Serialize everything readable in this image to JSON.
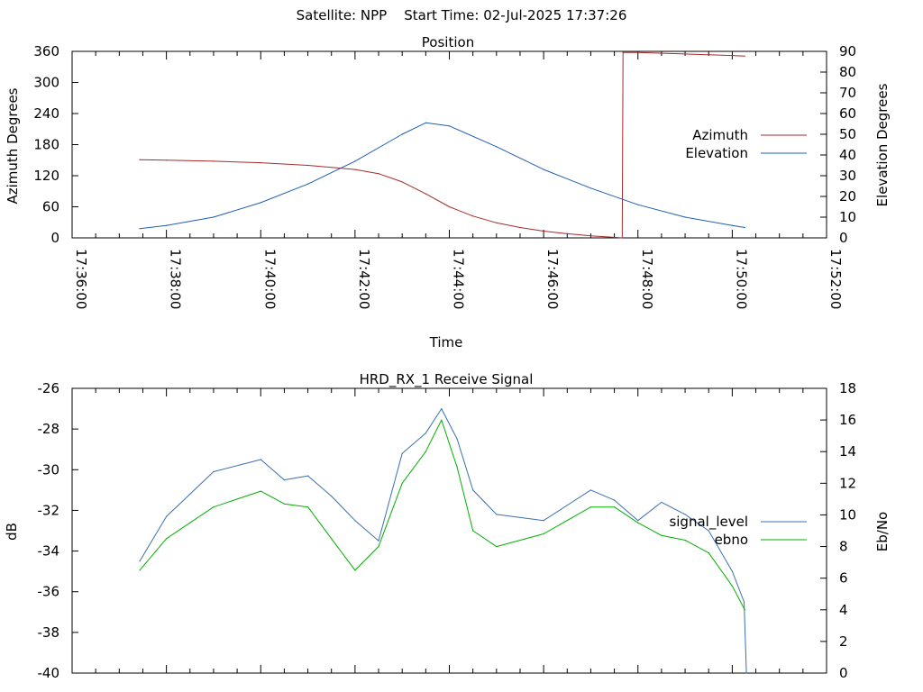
{
  "page_title": "Satellite: NPP    Start Time: 02-Jul-2025 17:37:26",
  "colors": {
    "azimuth": "#a52a2a",
    "elevation": "#1f5fb4",
    "signal_level": "#3a6fb0",
    "ebno": "#00b000",
    "axis": "#000000"
  },
  "chart_data": [
    {
      "type": "line",
      "title": "Position",
      "xlabel": "Time",
      "ylabel": "Azimuth Degrees",
      "y2label": "Elevation Degrees",
      "xlim": [
        "17:36:00",
        "17:52:00"
      ],
      "x_ticks": [
        "17:36:00",
        "17:38:00",
        "17:40:00",
        "17:42:00",
        "17:44:00",
        "17:46:00",
        "17:48:00",
        "17:50:00",
        "17:52:00"
      ],
      "ylim": [
        0,
        360
      ],
      "y_ticks": [
        0,
        60,
        120,
        180,
        240,
        300,
        360
      ],
      "y2lim": [
        0,
        90
      ],
      "y2_ticks": [
        0,
        10,
        20,
        30,
        40,
        50,
        60,
        70,
        80,
        90
      ],
      "legend_position": "right",
      "grid": false,
      "series": [
        {
          "name": "Azimuth",
          "axis": "left",
          "points": [
            [
              "17:37:26",
              151
            ],
            [
              "17:38:00",
              150
            ],
            [
              "17:39:00",
              148
            ],
            [
              "17:40:00",
              145
            ],
            [
              "17:41:00",
              140
            ],
            [
              "17:42:00",
              132
            ],
            [
              "17:42:30",
              124
            ],
            [
              "17:43:00",
              108
            ],
            [
              "17:43:30",
              85
            ],
            [
              "17:44:00",
              60
            ],
            [
              "17:44:30",
              42
            ],
            [
              "17:45:00",
              29
            ],
            [
              "17:45:30",
              20
            ],
            [
              "17:46:00",
              13
            ],
            [
              "17:46:30",
              8
            ],
            [
              "17:47:00",
              4
            ],
            [
              "17:47:30",
              1
            ],
            [
              "17:47:40",
              0
            ],
            [
              "17:47:41",
              358
            ],
            [
              "17:48:00",
              358
            ],
            [
              "17:49:00",
              355
            ],
            [
              "17:50:00",
              352
            ],
            [
              "17:50:16",
              351
            ]
          ]
        },
        {
          "name": "Elevation",
          "axis": "right",
          "points": [
            [
              "17:37:26",
              4.5
            ],
            [
              "17:38:00",
              6
            ],
            [
              "17:39:00",
              10
            ],
            [
              "17:40:00",
              17
            ],
            [
              "17:41:00",
              26
            ],
            [
              "17:42:00",
              37
            ],
            [
              "17:43:00",
              50
            ],
            [
              "17:43:30",
              55.5
            ],
            [
              "17:44:00",
              54
            ],
            [
              "17:45:00",
              44
            ],
            [
              "17:46:00",
              33
            ],
            [
              "17:47:00",
              24
            ],
            [
              "17:48:00",
              16
            ],
            [
              "17:49:00",
              10
            ],
            [
              "17:50:00",
              6
            ],
            [
              "17:50:16",
              5
            ]
          ]
        }
      ]
    },
    {
      "type": "line",
      "title": "HRD_RX_1 Receive Signal",
      "xlabel": "",
      "ylabel": "dB",
      "y2label": "Eb/No",
      "xlim": [
        "17:36:00",
        "17:52:00"
      ],
      "ylim": [
        -40,
        -26
      ],
      "y_ticks": [
        -40,
        -38,
        -36,
        -34,
        -32,
        -30,
        -28,
        -26
      ],
      "y2lim": [
        0,
        18
      ],
      "y2_ticks": [
        0,
        2,
        4,
        6,
        8,
        10,
        12,
        14,
        16,
        18
      ],
      "legend_position": "right",
      "grid": false,
      "series": [
        {
          "name": "signal_level",
          "axis": "left",
          "points": [
            [
              "17:37:26",
              -34.5
            ],
            [
              "17:38:00",
              -32.3
            ],
            [
              "17:38:30",
              -31.2
            ],
            [
              "17:39:00",
              -30.1
            ],
            [
              "17:40:00",
              -29.5
            ],
            [
              "17:40:30",
              -30.5
            ],
            [
              "17:41:00",
              -30.3
            ],
            [
              "17:41:30",
              -31.3
            ],
            [
              "17:42:00",
              -32.5
            ],
            [
              "17:42:30",
              -33.5
            ],
            [
              "17:43:00",
              -29.2
            ],
            [
              "17:43:30",
              -28.2
            ],
            [
              "17:43:50",
              -27.0
            ],
            [
              "17:44:10",
              -28.5
            ],
            [
              "17:44:30",
              -31.0
            ],
            [
              "17:45:00",
              -32.2
            ],
            [
              "17:46:00",
              -32.5
            ],
            [
              "17:47:00",
              -31.0
            ],
            [
              "17:47:30",
              -31.5
            ],
            [
              "17:48:00",
              -32.5
            ],
            [
              "17:48:30",
              -31.6
            ],
            [
              "17:49:00",
              -32.2
            ],
            [
              "17:49:30",
              -33.0
            ],
            [
              "17:50:00",
              -35.0
            ],
            [
              "17:50:15",
              -36.5
            ],
            [
              "17:50:18",
              -40.0
            ]
          ]
        },
        {
          "name": "ebno",
          "axis": "right",
          "points": [
            [
              "17:37:26",
              6.5
            ],
            [
              "17:38:00",
              8.5
            ],
            [
              "17:38:30",
              9.5
            ],
            [
              "17:39:00",
              10.5
            ],
            [
              "17:40:00",
              11.5
            ],
            [
              "17:40:30",
              10.7
            ],
            [
              "17:41:00",
              10.5
            ],
            [
              "17:41:30",
              8.5
            ],
            [
              "17:42:00",
              6.5
            ],
            [
              "17:42:30",
              8.0
            ],
            [
              "17:43:00",
              12.0
            ],
            [
              "17:43:30",
              14.0
            ],
            [
              "17:43:50",
              16.0
            ],
            [
              "17:44:10",
              13.0
            ],
            [
              "17:44:30",
              9.0
            ],
            [
              "17:45:00",
              8.0
            ],
            [
              "17:46:00",
              8.8
            ],
            [
              "17:47:00",
              10.5
            ],
            [
              "17:47:30",
              10.5
            ],
            [
              "17:48:00",
              9.5
            ],
            [
              "17:48:30",
              8.7
            ],
            [
              "17:49:00",
              8.4
            ],
            [
              "17:49:30",
              7.6
            ],
            [
              "17:50:00",
              5.5
            ],
            [
              "17:50:16",
              4.0
            ]
          ]
        }
      ]
    }
  ]
}
